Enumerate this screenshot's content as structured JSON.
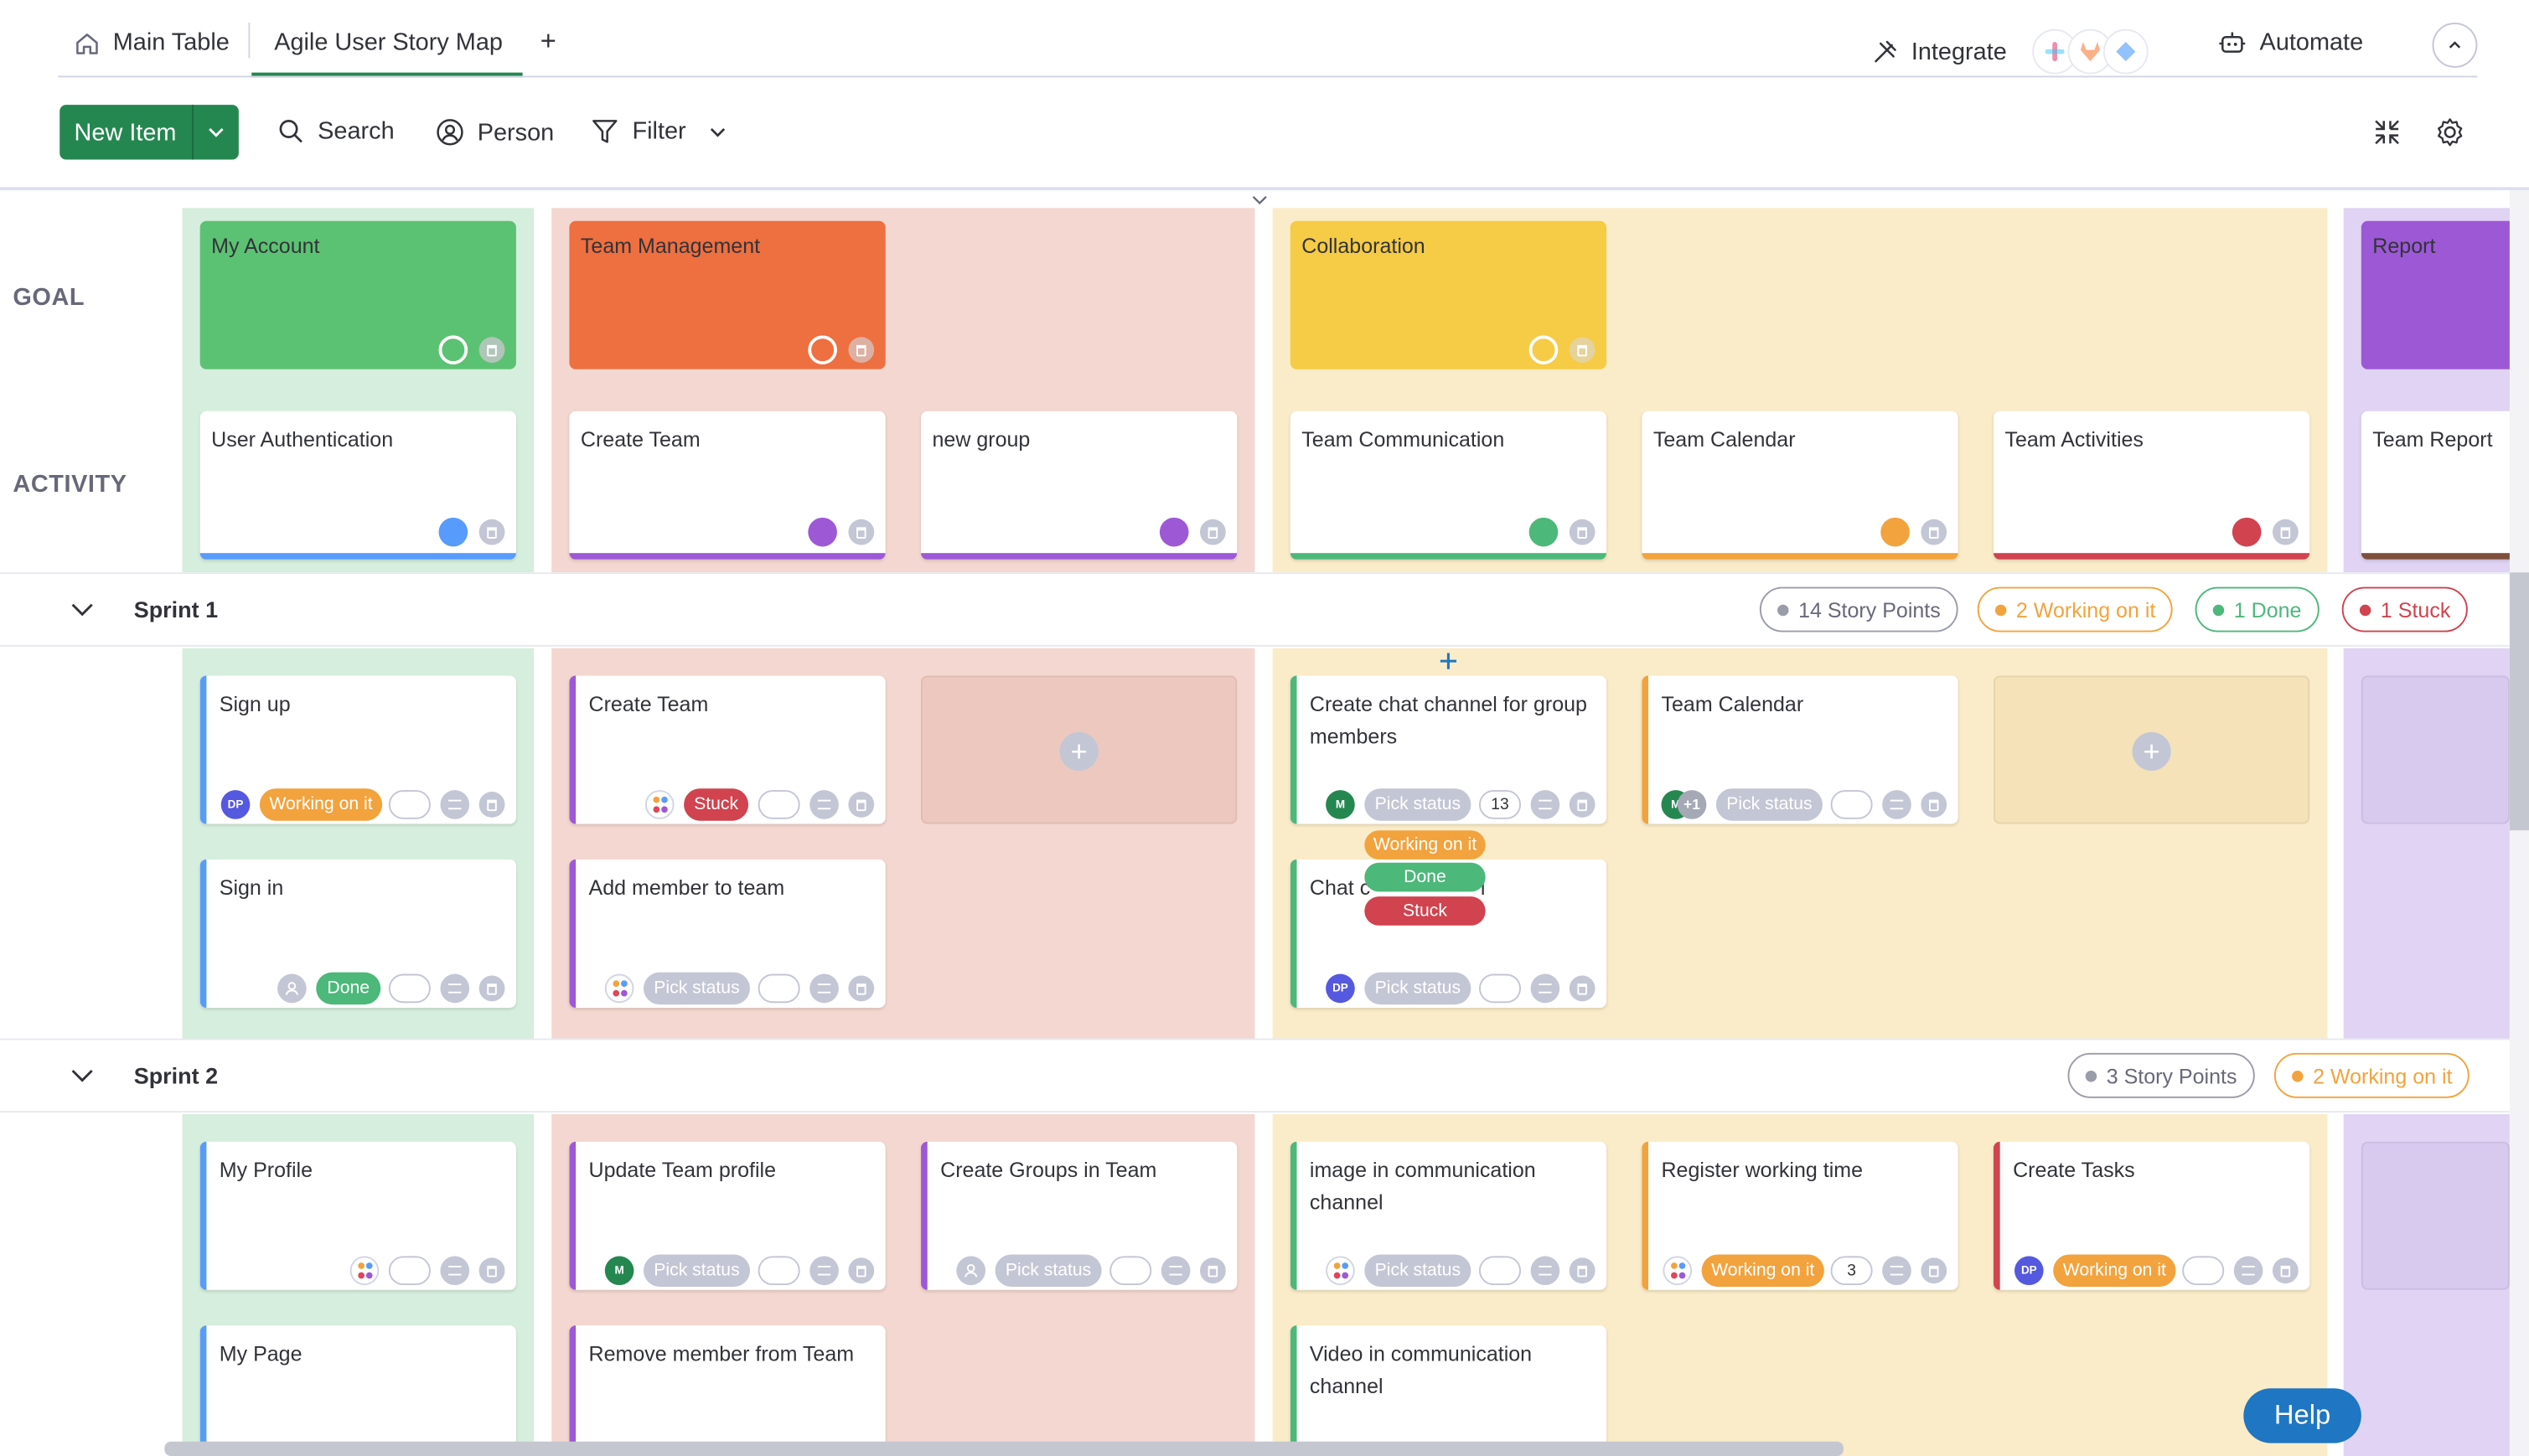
{
  "tabs": {
    "main_table": "Main Table",
    "story_map": "Agile User Story Map",
    "add": "+"
  },
  "top_right": {
    "integrate": "Integrate",
    "automate": "Automate"
  },
  "toolbar": {
    "new_item": "New Item",
    "search": "Search",
    "person": "Person",
    "filter": "Filter"
  },
  "row_labels": {
    "goal": "GOAL",
    "activity": "ACTIVITY"
  },
  "goals": {
    "my_account": "My Account",
    "team_management": "Team Management",
    "collaboration": "Collaboration",
    "report": "Report"
  },
  "activities": {
    "user_authentication": "User Authentication",
    "create_team": "Create Team",
    "new_group": "new group",
    "team_communication": "Team Communication",
    "team_calendar": "Team Calendar",
    "team_activities": "Team Activities",
    "team_report": "Team Report"
  },
  "sprint1": {
    "title": "Sprint 1",
    "pills": {
      "story_points": "14 Story Points",
      "working": "2 Working on it",
      "done": "1 Done",
      "stuck": "1 Stuck"
    },
    "cards": {
      "sign_up": "Sign up",
      "sign_in": "Sign in",
      "create_team": "Create Team",
      "add_member": "Add member to team",
      "create_chat": "Create chat channel for group members",
      "chat_partial_start": "Chat c",
      "chat_partial_end": "l",
      "team_calendar": "Team Calendar"
    }
  },
  "sprint2": {
    "title": "Sprint 2",
    "pills": {
      "story_points": "3 Story Points",
      "working": "2 Working on it"
    },
    "cards": {
      "my_profile": "My Profile",
      "my_page": "My Page",
      "update_team_profile": "Update Team profile",
      "remove_member": "Remove member from Team",
      "create_groups": "Create Groups in Team",
      "image_comm": "image in communication channel",
      "video_comm": "Video in communication channel",
      "register_time": "Register working time",
      "create_tasks": "Create Tasks"
    }
  },
  "statuses": {
    "working": "Working on it",
    "done": "Done",
    "stuck": "Stuck",
    "pick": "Pick status"
  },
  "dropdown": {
    "working": "Working on it",
    "done": "Done",
    "stuck": "Stuck"
  },
  "values": {
    "chat_points": "13",
    "register_points": "3"
  },
  "avatars": {
    "dp": "DP",
    "m": "M",
    "plus_one": "+1"
  },
  "help": "Help",
  "colors": {
    "accent_green": "#258750",
    "goal_green": "#5cc273",
    "goal_orange": "#ee6f40",
    "goal_yellow": "#f6cb45",
    "goal_purple": "#9d58d6",
    "status_working": "#f2a33d",
    "status_done": "#4cb87a",
    "status_stuck": "#d0434f",
    "status_pick": "#c3c6d4"
  }
}
